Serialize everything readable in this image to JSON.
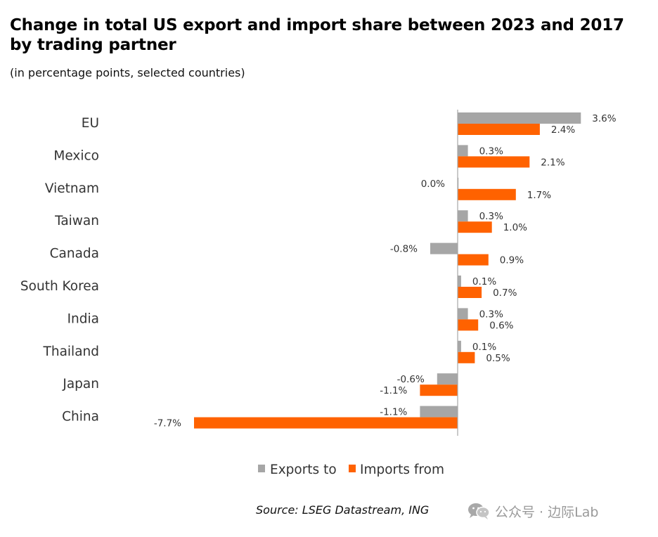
{
  "title": "Change in total US export and import share between 2023 and 2017 by trading partner",
  "subtitle": "(in percentage points, selected countries)",
  "source": "Source: LSEG Datastream, ING",
  "watermark": {
    "icon": "wechat-icon",
    "text": "公众号 · 边际Lab"
  },
  "colors": {
    "exports": "#a6a6a6",
    "imports": "#ff6200",
    "axis": "#a6a6a6"
  },
  "chart_data": {
    "type": "bar",
    "orientation": "horizontal",
    "title": "Change in total US export and import share between 2023 and 2017 by trading partner",
    "subtitle": "(in percentage points, selected countries)",
    "categories": [
      "EU",
      "Mexico",
      "Vietnam",
      "Taiwan",
      "Canada",
      "South Korea",
      "India",
      "Thailand",
      "Japan",
      "China"
    ],
    "series": [
      {
        "name": "Exports to",
        "values": [
          3.6,
          0.3,
          0.0,
          0.3,
          -0.8,
          0.1,
          0.3,
          0.1,
          -0.6,
          -1.1
        ],
        "labels": [
          "3.6%",
          "0.3%",
          "0.0%",
          "0.3%",
          "-0.8%",
          "0.1%",
          "0.3%",
          "0.1%",
          "-0.6%",
          "-1.1%"
        ]
      },
      {
        "name": "Imports from",
        "values": [
          2.4,
          2.1,
          1.7,
          1.0,
          0.9,
          0.7,
          0.6,
          0.5,
          -1.1,
          -7.7
        ],
        "labels": [
          "2.4%",
          "2.1%",
          "1.7%",
          "1.0%",
          "0.9%",
          "0.7%",
          "0.6%",
          "0.5%",
          "-1.1%",
          "-7.7%"
        ]
      }
    ],
    "xlim": [
      -7.7,
      3.6
    ],
    "xlabel": "",
    "ylabel": "",
    "grid": false,
    "legend_position": "bottom"
  }
}
